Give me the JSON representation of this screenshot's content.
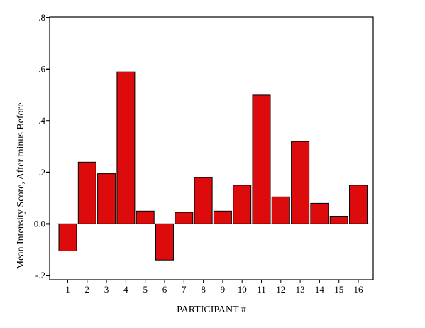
{
  "chart_data": {
    "type": "bar",
    "title": "",
    "xlabel": "PARTICIPANT #",
    "ylabel": "Mean Intensity Score, After minus Before",
    "categories": [
      "1",
      "2",
      "3",
      "4",
      "5",
      "6",
      "7",
      "8",
      "9",
      "10",
      "11",
      "12",
      "13",
      "14",
      "15",
      "16"
    ],
    "values": [
      -0.105,
      0.24,
      0.195,
      0.59,
      0.05,
      -0.14,
      0.045,
      0.18,
      0.05,
      0.15,
      0.5,
      0.105,
      0.32,
      0.08,
      0.03,
      0.15
    ],
    "ylim": [
      -0.2,
      0.8
    ],
    "yticks": [
      -0.2,
      0.0,
      0.2,
      0.4,
      0.6,
      0.8
    ],
    "ytick_labels": [
      "-.2",
      "0.0",
      ".2",
      ".4",
      ".6",
      ".8"
    ],
    "grid": false,
    "legend": "none",
    "bar_color": "#dd0b0b",
    "edge_color": "#000000"
  }
}
